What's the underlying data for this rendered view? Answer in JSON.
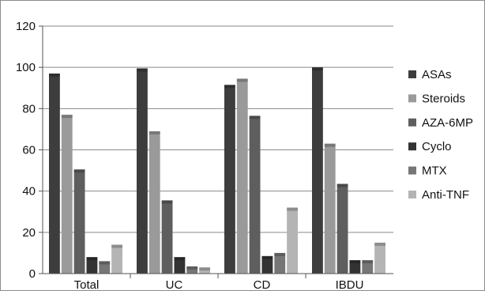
{
  "chart_data": {
    "type": "bar",
    "categories": [
      "Total",
      "UC",
      "CD",
      "IBDU"
    ],
    "series": [
      {
        "name": "ASAs",
        "values": [
          97,
          99.5,
          91.5,
          100
        ],
        "color": "#3d3d3d"
      },
      {
        "name": "Steroids",
        "values": [
          77,
          69,
          94.5,
          63
        ],
        "color": "#9a9a9a"
      },
      {
        "name": "AZA-6MP",
        "values": [
          50.5,
          35.5,
          76.5,
          43.5
        ],
        "color": "#5e5e5e"
      },
      {
        "name": "Cyclo",
        "values": [
          8,
          8,
          8.5,
          6.5
        ],
        "color": "#333333"
      },
      {
        "name": "MTX",
        "values": [
          6,
          3.5,
          10,
          6.5
        ],
        "color": "#767676"
      },
      {
        "name": "Anti-TNF",
        "values": [
          14,
          3,
          32,
          15
        ],
        "color": "#b4b4b4"
      }
    ],
    "yticks": [
      0,
      20,
      40,
      60,
      80,
      100,
      120
    ],
    "ylim": [
      0,
      120
    ],
    "grid": true,
    "legend": "right"
  }
}
